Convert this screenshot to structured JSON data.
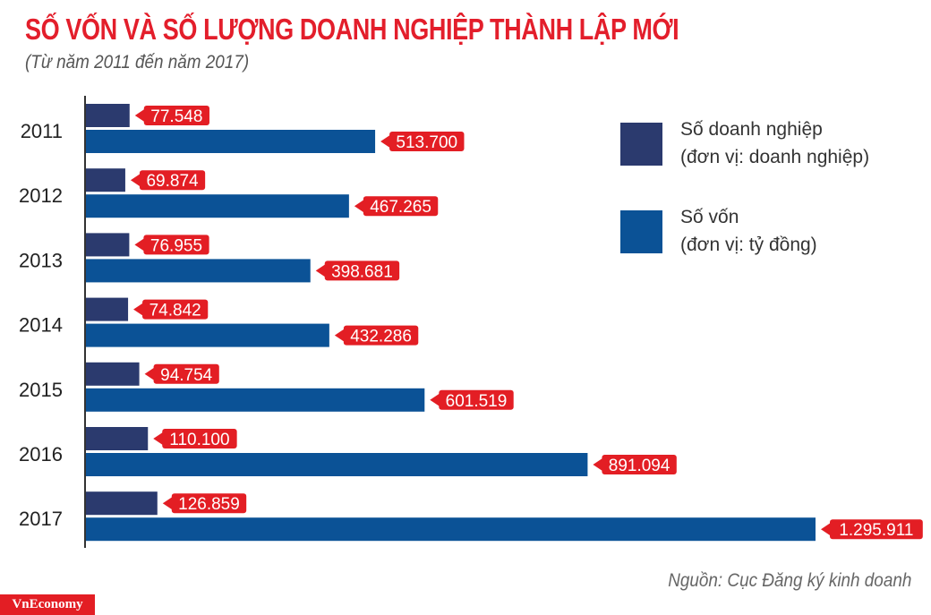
{
  "chart_data": {
    "type": "bar",
    "orientation": "horizontal",
    "title": "SỐ VỐN VÀ SỐ LƯỢNG DOANH NGHIỆP THÀNH LẬP MỚI",
    "subtitle": "(Từ năm 2011 đến năm 2017)",
    "categories": [
      "2011",
      "2012",
      "2013",
      "2014",
      "2015",
      "2016",
      "2017"
    ],
    "series": [
      {
        "name": "Số doanh nghiệp",
        "unit": "(đơn vị: doanh nghiệp)",
        "color": "#2b3a6e",
        "values": [
          77548,
          69874,
          76955,
          74842,
          94754,
          110100,
          126859
        ],
        "labels": [
          "77.548",
          "69.874",
          "76.955",
          "74.842",
          "94.754",
          "110.100",
          "126.859"
        ]
      },
      {
        "name": "Số vốn",
        "unit": "(đơn vị: tỷ đồng)",
        "color": "#0b5296",
        "values": [
          513700,
          467265,
          398681,
          432286,
          601519,
          891094,
          1295911
        ],
        "labels": [
          "513.700",
          "467.265",
          "398.681",
          "432.286",
          "601.519",
          "891.094",
          "1.295.911"
        ]
      }
    ],
    "label_color": "#e31e24",
    "legend_placement": "right",
    "grid": false
  },
  "source": "Nguồn: Cục Đăng ký kinh doanh",
  "logo": "VnEconomy"
}
